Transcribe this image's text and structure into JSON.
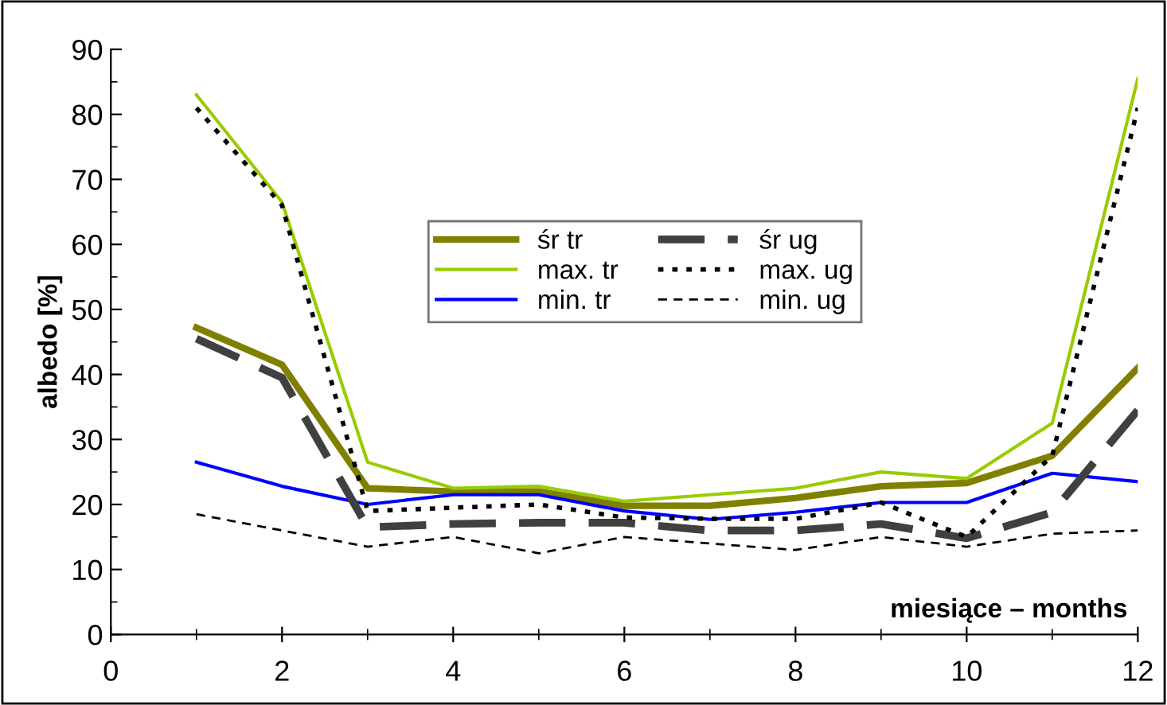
{
  "chart_data": {
    "type": "line",
    "ylabel": "albedo [%]",
    "xlabel": "miesiące – months",
    "x": [
      1,
      2,
      3,
      4,
      5,
      6,
      7,
      8,
      9,
      10,
      11,
      12
    ],
    "xlim": [
      0,
      12
    ],
    "xticks": [
      0,
      2,
      4,
      6,
      8,
      10,
      12
    ],
    "ylim": [
      0,
      90
    ],
    "yticks": [
      0,
      10,
      20,
      30,
      40,
      50,
      60,
      70,
      80,
      90
    ],
    "grid": false,
    "legend": "center",
    "marker": "none",
    "series": [
      {
        "name": "śr tr",
        "color": "#808000",
        "line_style": "solid",
        "values": [
          47.2,
          41.5,
          22.5,
          22,
          22,
          19.8,
          19.8,
          21,
          22.8,
          23.3,
          27.5,
          41
        ]
      },
      {
        "name": "max. tr",
        "color": "#99cc00",
        "line_style": "solid",
        "values": [
          83,
          66.5,
          26.5,
          22.5,
          22.8,
          20.5,
          21.5,
          22.5,
          25,
          24,
          32.5,
          85.5
        ]
      },
      {
        "name": "min. tr",
        "color": "#0000ff",
        "line_style": "solid",
        "values": [
          26.5,
          22.8,
          20,
          21.5,
          21.5,
          19,
          17.7,
          18.8,
          20.3,
          20.3,
          24.8,
          23.5
        ]
      },
      {
        "name": "śr ug",
        "color": "#404040",
        "line_style": "dashed",
        "values": [
          45.5,
          39.5,
          16.5,
          17,
          17.2,
          17.2,
          16,
          16,
          17,
          14.8,
          18.8,
          34.5
        ]
      },
      {
        "name": "max. ug",
        "color": "#000000",
        "line_style": "dotted",
        "values": [
          81,
          66,
          19,
          19.5,
          20,
          18,
          17.8,
          17.8,
          20.3,
          15,
          27.5,
          81
        ]
      },
      {
        "name": "min. ug",
        "color": "#000000",
        "line_style": "dashed",
        "values": [
          18.5,
          16,
          13.5,
          15,
          12.5,
          15,
          14,
          13,
          15,
          13.5,
          15.5,
          16
        ]
      }
    ]
  }
}
